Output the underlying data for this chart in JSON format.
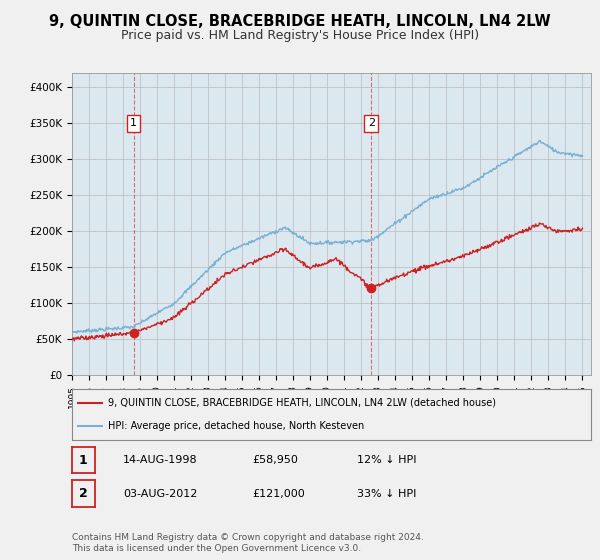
{
  "title": "9, QUINTIN CLOSE, BRACEBRIDGE HEATH, LINCOLN, LN4 2LW",
  "subtitle": "Price paid vs. HM Land Registry's House Price Index (HPI)",
  "title_fontsize": 10.5,
  "subtitle_fontsize": 9,
  "ylabel_ticks": [
    "£0",
    "£50K",
    "£100K",
    "£150K",
    "£200K",
    "£250K",
    "£300K",
    "£350K",
    "£400K"
  ],
  "ytick_values": [
    0,
    50000,
    100000,
    150000,
    200000,
    250000,
    300000,
    350000,
    400000
  ],
  "ylim": [
    0,
    420000
  ],
  "xlim_start": 1995.0,
  "xlim_end": 2025.5,
  "purchase1_x": 1998.617,
  "purchase1_y": 58950,
  "purchase1_label": "1",
  "purchase2_x": 2012.583,
  "purchase2_y": 121000,
  "purchase2_label": "2",
  "vline1_x": 1998.617,
  "vline2_x": 2012.583,
  "hpi_color": "#7ab0d4",
  "price_color": "#cc2222",
  "vline_color": "#cc2222",
  "background_color": "#f0f0f0",
  "plot_bg_color": "#dce8f0",
  "legend_line1": "9, QUINTIN CLOSE, BRACEBRIDGE HEATH, LINCOLN, LN4 2LW (detached house)",
  "legend_line2": "HPI: Average price, detached house, North Kesteven",
  "table_row1": [
    "1",
    "14-AUG-1998",
    "£58,950",
    "12% ↓ HPI"
  ],
  "table_row2": [
    "2",
    "03-AUG-2012",
    "£121,000",
    "33% ↓ HPI"
  ],
  "footer": "Contains HM Land Registry data © Crown copyright and database right 2024.\nThis data is licensed under the Open Government Licence v3.0.",
  "xtick_years": [
    1995,
    1996,
    1997,
    1998,
    1999,
    2000,
    2001,
    2002,
    2003,
    2004,
    2005,
    2006,
    2007,
    2008,
    2009,
    2010,
    2011,
    2012,
    2013,
    2014,
    2015,
    2016,
    2017,
    2018,
    2019,
    2020,
    2021,
    2022,
    2023,
    2024,
    2025
  ]
}
